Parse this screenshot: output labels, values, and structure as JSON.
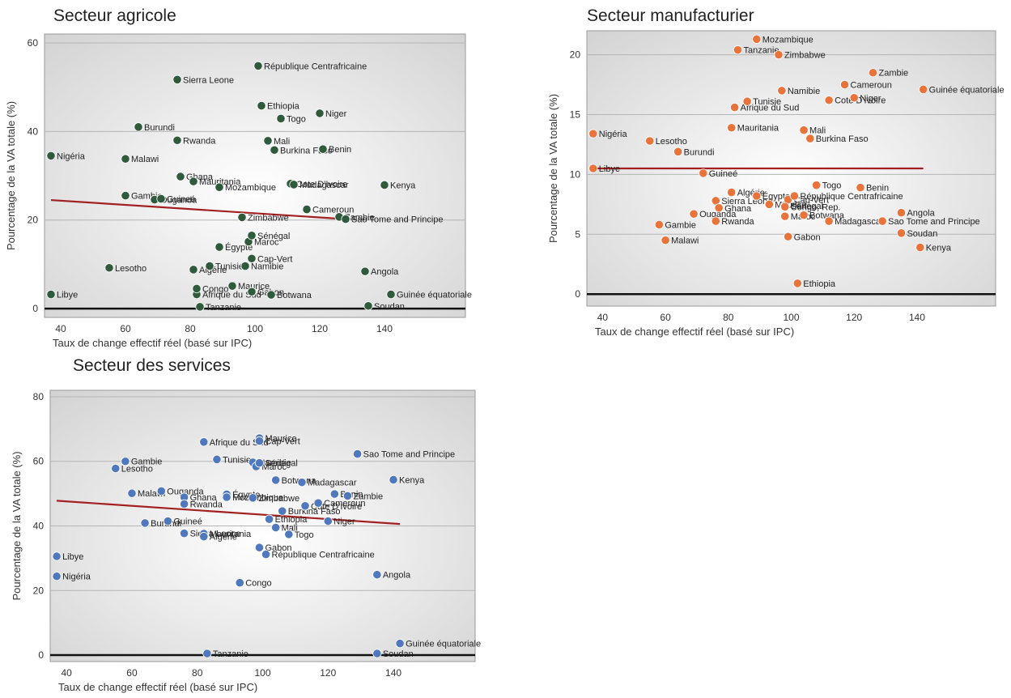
{
  "chart_data": [
    {
      "type": "scatter",
      "title": "Secteur agricole",
      "xlabel": "Taux de change effectif réel (basé sur IPC)",
      "ylabel": "Pourcentage de la VA totale (%)",
      "xlim": [
        35,
        165
      ],
      "ylim": [
        -2,
        62
      ],
      "xticks": [
        40,
        60,
        80,
        100,
        120,
        140
      ],
      "yticks": [
        0,
        20,
        40,
        60
      ],
      "grid": true,
      "point_color": "#2f5a3c",
      "trend_color": "#a32020",
      "trend": {
        "x": [
          37,
          128
        ],
        "y": [
          24.5,
          20.2
        ]
      },
      "points": [
        {
          "label": "Libye",
          "x": 37,
          "y": 3.2
        },
        {
          "label": "Nigéria",
          "x": 37,
          "y": 34.5
        },
        {
          "label": "Lesotho",
          "x": 55,
          "y": 9.2
        },
        {
          "label": "Gambie",
          "x": 60,
          "y": 25.5
        },
        {
          "label": "Malawi",
          "x": 60,
          "y": 33.8
        },
        {
          "label": "Burundi",
          "x": 64,
          "y": 41
        },
        {
          "label": "Ouganda",
          "x": 69,
          "y": 24.6
        },
        {
          "label": "Guineé",
          "x": 71,
          "y": 24.8
        },
        {
          "label": "Sierra Leone",
          "x": 76,
          "y": 51.7
        },
        {
          "label": "Rwanda",
          "x": 76,
          "y": 38
        },
        {
          "label": "Ghana",
          "x": 77,
          "y": 29.8
        },
        {
          "label": "Mauritania",
          "x": 81,
          "y": 28.7
        },
        {
          "label": "Algérie",
          "x": 81,
          "y": 8.8
        },
        {
          "label": "Afrique du Sud",
          "x": 82,
          "y": 3.2
        },
        {
          "label": "Congo",
          "x": 82,
          "y": 4.5
        },
        {
          "label": "Tanzanie",
          "x": 83,
          "y": 0.4
        },
        {
          "label": "Tunisie",
          "x": 86,
          "y": 9.6
        },
        {
          "label": "Égypte",
          "x": 89,
          "y": 13.9
        },
        {
          "label": "Mozambique",
          "x": 89,
          "y": 27.4
        },
        {
          "label": "Maurice",
          "x": 93,
          "y": 5.1
        },
        {
          "label": "Zimbabwe",
          "x": 96,
          "y": 20.6
        },
        {
          "label": "Namibie",
          "x": 97,
          "y": 9.6
        },
        {
          "label": "Maroc",
          "x": 98,
          "y": 15.1
        },
        {
          "label": "Sénégal",
          "x": 99,
          "y": 16.5
        },
        {
          "label": "Cap-Vert",
          "x": 99,
          "y": 11.3
        },
        {
          "label": "Gabon",
          "x": 99,
          "y": 3.8
        },
        {
          "label": "République Centrafricaine",
          "x": 101,
          "y": 54.8
        },
        {
          "label": "Ethiopia",
          "x": 102,
          "y": 45.8
        },
        {
          "label": "Mali",
          "x": 104,
          "y": 37.9
        },
        {
          "label": "Botwana",
          "x": 105,
          "y": 3.1
        },
        {
          "label": "Burkina Faso",
          "x": 106,
          "y": 35.8
        },
        {
          "label": "Togo",
          "x": 108,
          "y": 42.9
        },
        {
          "label": "Cote D'Ivoire",
          "x": 111,
          "y": 28.2
        },
        {
          "label": "Madagascar",
          "x": 112,
          "y": 28
        },
        {
          "label": "Cameroun",
          "x": 116,
          "y": 22.4
        },
        {
          "label": "Niger",
          "x": 120,
          "y": 44.1
        },
        {
          "label": "Benin",
          "x": 121,
          "y": 36
        },
        {
          "label": "Zambie",
          "x": 126,
          "y": 20.7
        },
        {
          "label": "Sao Tome and Principe",
          "x": 128,
          "y": 20.2
        },
        {
          "label": "Angola",
          "x": 134,
          "y": 8.4
        },
        {
          "label": "Soudan",
          "x": 135,
          "y": 0.6
        },
        {
          "label": "Kenya",
          "x": 140,
          "y": 27.9
        },
        {
          "label": "Guinée équatoriale",
          "x": 142,
          "y": 3.2
        }
      ]
    },
    {
      "type": "scatter",
      "title": "Secteur manufacturier",
      "xlabel": "Taux de change effectif réel (basé sur IPC)",
      "ylabel": "Pourcentage de la VA totale (%)",
      "xlim": [
        35,
        165
      ],
      "ylim": [
        -1,
        22
      ],
      "xticks": [
        40,
        60,
        80,
        100,
        120,
        140
      ],
      "yticks": [
        0,
        5,
        10,
        15,
        20
      ],
      "grid": true,
      "point_color": "#e8743c",
      "trend_color": "#a32020",
      "trend": {
        "x": [
          37,
          142
        ],
        "y": [
          10.5,
          10.5
        ]
      },
      "points": [
        {
          "label": "Libye",
          "x": 37,
          "y": 10.5
        },
        {
          "label": "Nigéria",
          "x": 37,
          "y": 13.4
        },
        {
          "label": "Lesotho",
          "x": 55,
          "y": 12.8
        },
        {
          "label": "Gambie",
          "x": 58,
          "y": 5.8
        },
        {
          "label": "Malawi",
          "x": 60,
          "y": 4.5
        },
        {
          "label": "Burundi",
          "x": 64,
          "y": 11.9
        },
        {
          "label": "Ouganda",
          "x": 69,
          "y": 6.7
        },
        {
          "label": "Guineé",
          "x": 72,
          "y": 10.1
        },
        {
          "label": "Sierra Leone",
          "x": 76,
          "y": 7.8
        },
        {
          "label": "Rwanda",
          "x": 76,
          "y": 6.1
        },
        {
          "label": "Ghana",
          "x": 77,
          "y": 7.2
        },
        {
          "label": "Mauritania",
          "x": 81,
          "y": 13.9
        },
        {
          "label": "Algérie",
          "x": 81,
          "y": 8.5
        },
        {
          "label": "Afrique du Sud",
          "x": 82,
          "y": 15.6
        },
        {
          "label": "Tanzanie",
          "x": 83,
          "y": 20.4
        },
        {
          "label": "Tunisie",
          "x": 86,
          "y": 16.1
        },
        {
          "label": "Égypte",
          "x": 89,
          "y": 8.2
        },
        {
          "label": "Mozambique",
          "x": 89,
          "y": 21.3
        },
        {
          "label": "Maurice",
          "x": 93,
          "y": 7.5
        },
        {
          "label": "Zimbabwe",
          "x": 96,
          "y": 20
        },
        {
          "label": "Namibie",
          "x": 97,
          "y": 17
        },
        {
          "label": "Sénégal",
          "x": 98,
          "y": 7.4
        },
        {
          "label": "Maroc",
          "x": 98,
          "y": 6.5
        },
        {
          "label": "Cap-Vert",
          "x": 99,
          "y": 7.9
        },
        {
          "label": "Gabon",
          "x": 99,
          "y": 4.8
        },
        {
          "label": "Congo, Rep.",
          "x": 98,
          "y": 7.3
        },
        {
          "label": "République Centrafricaine",
          "x": 101,
          "y": 8.2
        },
        {
          "label": "Ethiopia",
          "x": 102,
          "y": 0.9
        },
        {
          "label": "Mali",
          "x": 104,
          "y": 13.7
        },
        {
          "label": "Botwana",
          "x": 104,
          "y": 6.6
        },
        {
          "label": "Burkina Faso",
          "x": 106,
          "y": 13
        },
        {
          "label": "Togo",
          "x": 108,
          "y": 9.1
        },
        {
          "label": "Cote D'Ivoire",
          "x": 112,
          "y": 16.2
        },
        {
          "label": "Madagascar",
          "x": 112,
          "y": 6.1
        },
        {
          "label": "Cameroun",
          "x": 117,
          "y": 17.5
        },
        {
          "label": "Niger",
          "x": 120,
          "y": 16.4
        },
        {
          "label": "Benin",
          "x": 122,
          "y": 8.9
        },
        {
          "label": "Zambie",
          "x": 126,
          "y": 18.5
        },
        {
          "label": "Sao Tome and Principe",
          "x": 129,
          "y": 6.1
        },
        {
          "label": "Angola",
          "x": 135,
          "y": 6.8
        },
        {
          "label": "Soudan",
          "x": 135,
          "y": 5.1
        },
        {
          "label": "Kenya",
          "x": 141,
          "y": 3.9
        },
        {
          "label": "Guinée équatoriale",
          "x": 142,
          "y": 17.1
        }
      ]
    },
    {
      "type": "scatter",
      "title": "Secteur des services",
      "xlabel": "Taux de change effectif réel (basé sur IPC)",
      "ylabel": "Pourcentage de la VA totale (%)",
      "xlim": [
        35,
        165
      ],
      "ylim": [
        -2,
        82
      ],
      "xticks": [
        40,
        60,
        80,
        100,
        120,
        140
      ],
      "yticks": [
        0,
        20,
        40,
        60,
        80
      ],
      "grid": true,
      "point_color": "#4f78bd",
      "trend_color": "#a32020",
      "trend": {
        "x": [
          37,
          142
        ],
        "y": [
          47.8,
          40.6
        ]
      },
      "points": [
        {
          "label": "Libye",
          "x": 37,
          "y": 30.6
        },
        {
          "label": "Nigéria",
          "x": 37,
          "y": 24.4
        },
        {
          "label": "Lesotho",
          "x": 55,
          "y": 57.8
        },
        {
          "label": "Gambie",
          "x": 58,
          "y": 60
        },
        {
          "label": "Malawi",
          "x": 60,
          "y": 50.1
        },
        {
          "label": "Burundi",
          "x": 64,
          "y": 40.9
        },
        {
          "label": "Ouganda",
          "x": 69,
          "y": 50.8
        },
        {
          "label": "Guineé",
          "x": 71,
          "y": 41.5
        },
        {
          "label": "Ghana",
          "x": 76,
          "y": 48.9
        },
        {
          "label": "Rwanda",
          "x": 76,
          "y": 46.8
        },
        {
          "label": "Sierra Leone",
          "x": 76,
          "y": 37.7
        },
        {
          "label": "Mauritania",
          "x": 82,
          "y": 37.6
        },
        {
          "label": "Algérie",
          "x": 82,
          "y": 36.7
        },
        {
          "label": "Afrique du Sud",
          "x": 82,
          "y": 66
        },
        {
          "label": "Tanzanie",
          "x": 83,
          "y": 0.5
        },
        {
          "label": "Tunisie",
          "x": 86,
          "y": 60.6
        },
        {
          "label": "Égypte",
          "x": 89,
          "y": 49.8
        },
        {
          "label": "Mozambique",
          "x": 89,
          "y": 48.9
        },
        {
          "label": "Congo",
          "x": 93,
          "y": 22.4
        },
        {
          "label": "Namibie",
          "x": 97,
          "y": 59.7
        },
        {
          "label": "Zimbabwe",
          "x": 97,
          "y": 48.7
        },
        {
          "label": "Maroc",
          "x": 98,
          "y": 58.4
        },
        {
          "label": "Sénégal",
          "x": 99,
          "y": 59.5
        },
        {
          "label": "Maurice",
          "x": 99,
          "y": 67.2
        },
        {
          "label": "Cap-Vert",
          "x": 99,
          "y": 66.3
        },
        {
          "label": "Gabon",
          "x": 99,
          "y": 33.3
        },
        {
          "label": "République Centrafricaine",
          "x": 101,
          "y": 31.2
        },
        {
          "label": "Ethiopia",
          "x": 102,
          "y": 42.1
        },
        {
          "label": "Mali",
          "x": 104,
          "y": 39.5
        },
        {
          "label": "Botwana",
          "x": 104,
          "y": 54.2
        },
        {
          "label": "Burkina Faso",
          "x": 106,
          "y": 44.6
        },
        {
          "label": "Togo",
          "x": 108,
          "y": 37.4
        },
        {
          "label": "Madagascar",
          "x": 112,
          "y": 53.5
        },
        {
          "label": "Cote D'Ivoire",
          "x": 113,
          "y": 46.2
        },
        {
          "label": "Cameroun",
          "x": 117,
          "y": 47.1
        },
        {
          "label": "Niger",
          "x": 120,
          "y": 41.5
        },
        {
          "label": "Benin",
          "x": 122,
          "y": 49.9
        },
        {
          "label": "Zambie",
          "x": 126,
          "y": 49.3
        },
        {
          "label": "Sao Tome and Principe",
          "x": 129,
          "y": 62.3
        },
        {
          "label": "Angola",
          "x": 135,
          "y": 24.9
        },
        {
          "label": "Soudan",
          "x": 135,
          "y": 0.5
        },
        {
          "label": "Kenya",
          "x": 140,
          "y": 54.3
        },
        {
          "label": "Guinée équatoriale",
          "x": 142,
          "y": 3.6
        }
      ]
    }
  ]
}
